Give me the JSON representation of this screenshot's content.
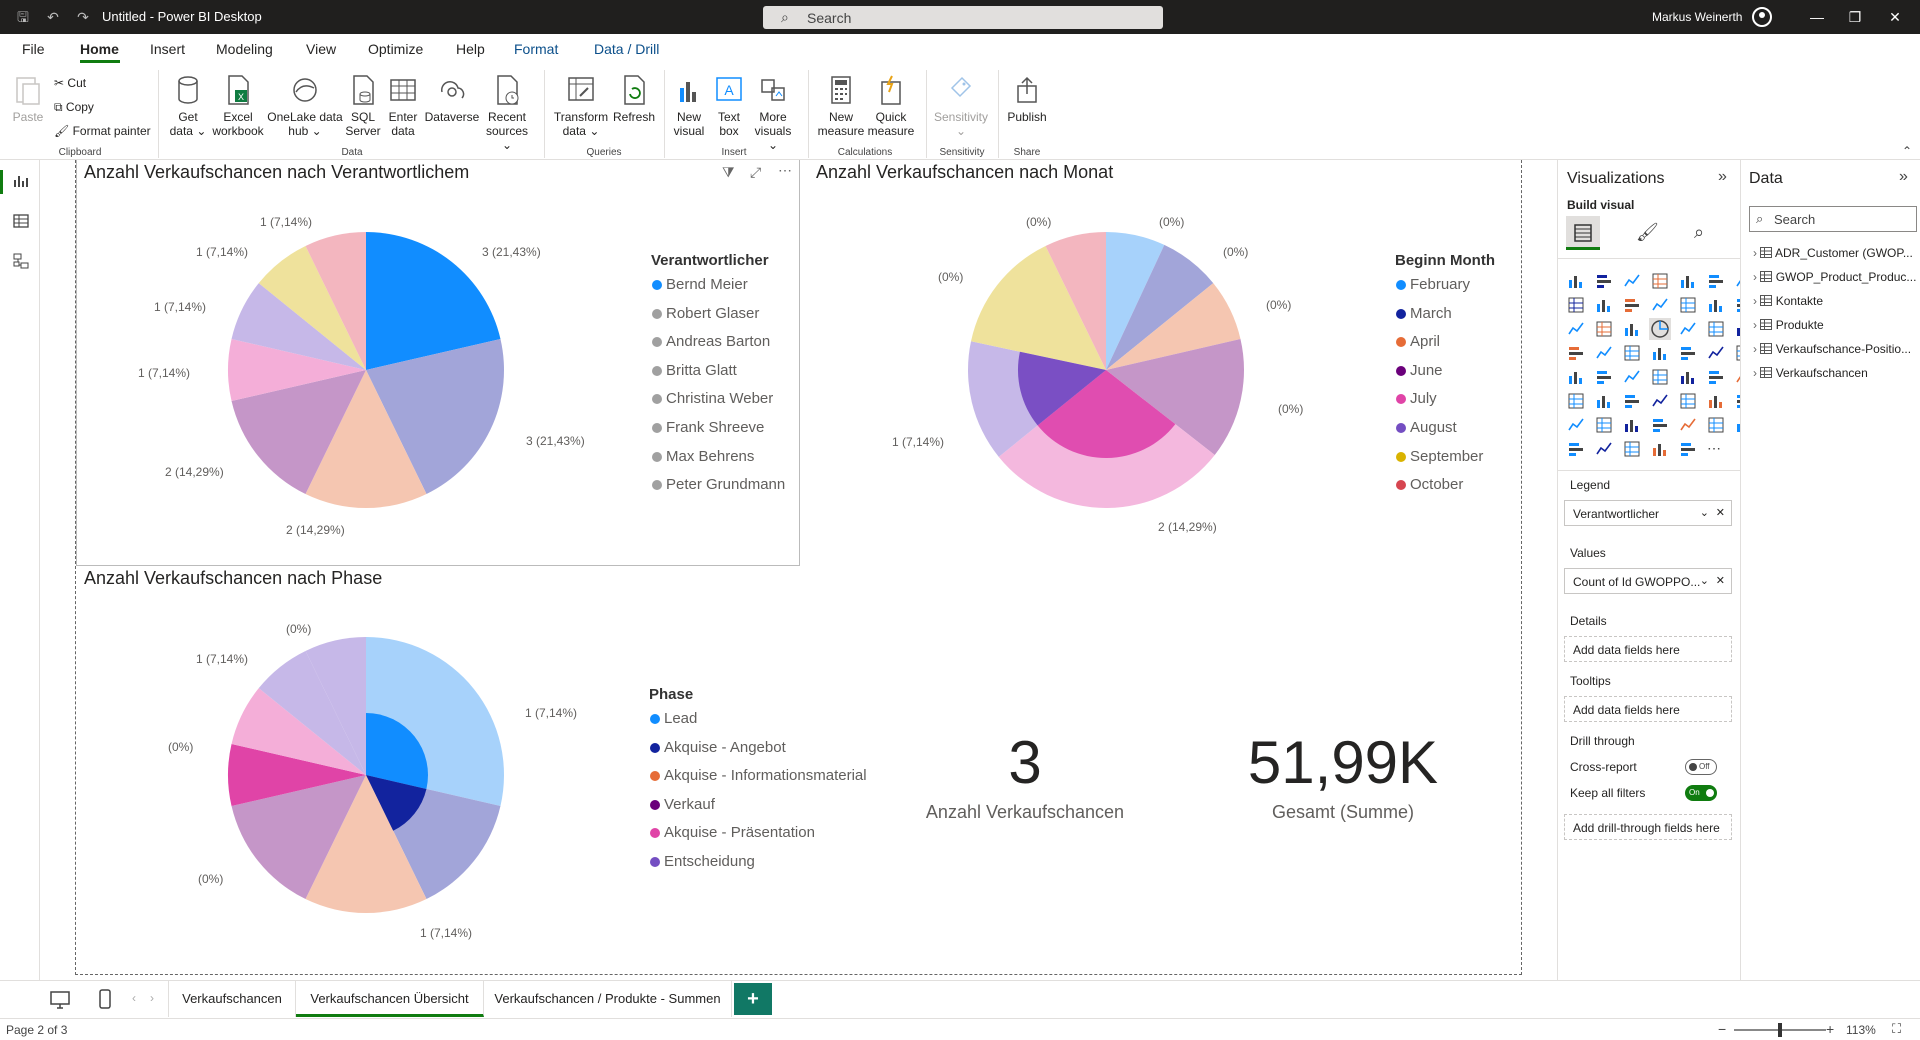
{
  "titlebar": {
    "title": "Untitled - Power BI Desktop",
    "search_placeholder": "Search",
    "user_name": "Markus Weinerth"
  },
  "menu": {
    "items": [
      "File",
      "Home",
      "Insert",
      "Modeling",
      "View",
      "Optimize",
      "Help",
      "Format",
      "Data / Drill"
    ],
    "active": "Home"
  },
  "ribbon": {
    "clipboard": {
      "paste": "Paste",
      "cut": "Cut",
      "copy": "Copy",
      "format_painter": "Format painter",
      "group": "Clipboard"
    },
    "data": {
      "get_data": [
        "Get",
        "data ⌄"
      ],
      "excel": [
        "Excel",
        "workbook"
      ],
      "onelake": [
        "OneLake data",
        "hub ⌄"
      ],
      "sql": [
        "SQL",
        "Server"
      ],
      "enter": [
        "Enter",
        "data"
      ],
      "dataverse": [
        "Dataverse"
      ],
      "recent": [
        "Recent",
        "sources ⌄"
      ],
      "group": "Data"
    },
    "queries": {
      "transform": [
        "Transform",
        "data ⌄"
      ],
      "refresh": [
        "Refresh"
      ],
      "group": "Queries"
    },
    "insert": {
      "new_visual": [
        "New",
        "visual"
      ],
      "text_box": [
        "Text",
        "box"
      ],
      "more_visuals": [
        "More",
        "visuals ⌄"
      ],
      "group": "Insert"
    },
    "calculations": {
      "new_measure": [
        "New",
        "measure"
      ],
      "quick_measure": [
        "Quick",
        "measure"
      ],
      "group": "Calculations"
    },
    "sensitivity": {
      "label": [
        "Sensitivity",
        "⌄"
      ],
      "group": "Sensitivity"
    },
    "share": {
      "publish": [
        "Publish"
      ],
      "group": "Share"
    }
  },
  "visual1": {
    "title": "Anzahl Verkaufschancen nach Verantwortlichem",
    "legend_title": "Verantwortlicher",
    "legend": [
      {
        "name": "Bernd Meier",
        "color": "#118dff"
      },
      {
        "name": "Robert Glaser",
        "color": "#a0a0a0"
      },
      {
        "name": "Andreas Barton",
        "color": "#a0a0a0"
      },
      {
        "name": "Britta Glatt",
        "color": "#a0a0a0"
      },
      {
        "name": "Christina Weber",
        "color": "#a0a0a0"
      },
      {
        "name": "Frank Shreeve",
        "color": "#a0a0a0"
      },
      {
        "name": "Max Behrens",
        "color": "#a0a0a0"
      },
      {
        "name": "Peter Grundmann",
        "color": "#a0a0a0"
      }
    ],
    "labels": [
      "3 (21,43%)",
      "3 (21,43%)",
      "2 (14,29%)",
      "2 (14,29%)",
      "1 (7,14%)",
      "1 (7,14%)",
      "1 (7,14%)",
      "1 (7,14%)"
    ]
  },
  "visual2": {
    "title": "Anzahl Verkaufschancen nach Monat",
    "legend_title": "Beginn Month",
    "legend": [
      {
        "name": "February",
        "color": "#118dff"
      },
      {
        "name": "March",
        "color": "#12239e"
      },
      {
        "name": "April",
        "color": "#e66c37"
      },
      {
        "name": "June",
        "color": "#6b007b"
      },
      {
        "name": "July",
        "color": "#e044a7"
      },
      {
        "name": "August",
        "color": "#744ec2"
      },
      {
        "name": "September",
        "color": "#d9b300"
      },
      {
        "name": "October",
        "color": "#d64550"
      }
    ],
    "labels": [
      "(0%)",
      "(0%)",
      "(0%)",
      "(0%)",
      "(0%)",
      "(0%)",
      "1 (7,14%)",
      "2 (14,29%)"
    ]
  },
  "visual3": {
    "title": "Anzahl Verkaufschancen nach Phase",
    "legend_title": "Phase",
    "legend": [
      {
        "name": "Lead",
        "color": "#118dff"
      },
      {
        "name": "Akquise - Angebot",
        "color": "#12239e"
      },
      {
        "name": "Akquise - Informationsmaterial",
        "color": "#e66c37"
      },
      {
        "name": "Verkauf",
        "color": "#6b007b"
      },
      {
        "name": "Akquise - Präsentation",
        "color": "#e044a7"
      },
      {
        "name": "Entscheidung",
        "color": "#744ec2"
      }
    ],
    "labels": [
      "1 (7,14%)",
      "1 (7,14%)",
      "(0%)",
      "(0%)",
      "(0%)",
      "1 (7,14%)"
    ]
  },
  "cards": [
    {
      "value": "3",
      "label": "Anzahl Verkaufschancen"
    },
    {
      "value": "51,99K",
      "label": "Gesamt (Summe)"
    }
  ],
  "viz_pane": {
    "title": "Visualizations",
    "build_visual": "Build visual",
    "legend_label": "Legend",
    "legend_field": "Verantwortlicher",
    "values_label": "Values",
    "values_field": "Count of Id GWOPPO...",
    "details_label": "Details",
    "details_placeholder": "Add data fields here",
    "tooltips_label": "Tooltips",
    "tooltips_placeholder": "Add data fields here",
    "drill_label": "Drill through",
    "cross_report": "Cross-report",
    "cross_report_state": "Off",
    "keep_filters": "Keep all filters",
    "keep_filters_state": "On",
    "drill_placeholder": "Add drill-through fields here"
  },
  "data_pane": {
    "title": "Data",
    "search_placeholder": "Search",
    "tables": [
      "ADR_Customer (GWOP...",
      "GWOP_Product_Produc...",
      "Kontakte",
      "Produkte",
      "Verkaufschance-Positio...",
      "Verkaufschancen"
    ]
  },
  "tabs": {
    "items": [
      "Verkaufschancen",
      "Verkaufschancen Übersicht",
      "Verkaufschancen / Produkte - Summen"
    ],
    "active": 1,
    "add": "+"
  },
  "status": {
    "page": "Page 2 of 3",
    "zoom": "113%",
    "zoom_value": 0.5
  },
  "colors": {
    "accent": "#107c10",
    "titlebar": "#201f1e"
  }
}
